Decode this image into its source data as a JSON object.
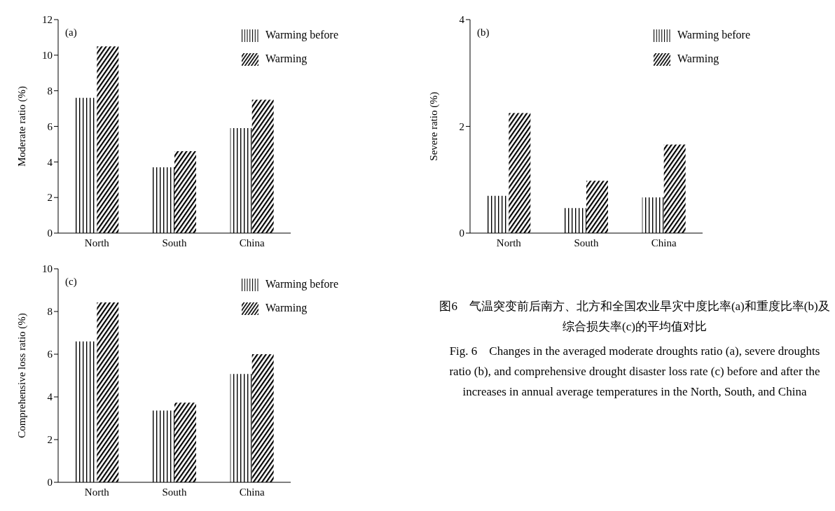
{
  "chart_data": [
    {
      "type": "bar",
      "annotations": [
        "(a)"
      ],
      "ylabel": "Moderate ratio (%)",
      "categories": [
        "North",
        "South",
        "China"
      ],
      "series": [
        {
          "name": "Warming before",
          "color": "#000000",
          "values": [
            7.6,
            3.7,
            5.9
          ]
        },
        {
          "name": "Warming",
          "color": "#000000",
          "values": [
            10.5,
            4.6,
            7.5
          ]
        }
      ],
      "ylim": [
        0,
        12
      ],
      "yticks": [
        0,
        2,
        4,
        6,
        8,
        10,
        12
      ],
      "legend": "top right"
    },
    {
      "type": "bar",
      "annotations": [
        "(b)"
      ],
      "ylabel": "Severe ratio (%)",
      "categories": [
        "North",
        "South",
        "China"
      ],
      "series": [
        {
          "name": "Warming before",
          "color": "#000000",
          "values": [
            0.7,
            0.47,
            0.67
          ]
        },
        {
          "name": "Warming",
          "color": "#000000",
          "values": [
            2.25,
            0.98,
            1.66
          ]
        }
      ],
      "ylim": [
        0,
        4
      ],
      "yticks": [
        0,
        2,
        4
      ],
      "legend": "top right"
    },
    {
      "type": "bar",
      "annotations": [
        "(c)"
      ],
      "ylabel": "Comprehensive loss ratio (%)",
      "categories": [
        "North",
        "South",
        "China"
      ],
      "series": [
        {
          "name": "Warming before",
          "color": "#000000",
          "values": [
            6.6,
            3.36,
            5.07
          ]
        },
        {
          "name": "Warming",
          "color": "#000000",
          "values": [
            8.43,
            3.73,
            6.0
          ]
        }
      ],
      "ylim": [
        0,
        10
      ],
      "yticks": [
        0,
        2,
        4,
        6,
        8,
        10
      ],
      "legend": "top right"
    },
    {
      "type": "other",
      "annotations": [
        "图6　气温突变前后南方、北方和全国农业旱灾中度比率(a)和重度比率(b)及综合损失率(c)的平均值对比",
        "Fig. 6　Changes in the averaged moderate droughts ratio (a), severe droughts ratio (b), and comprehensive drought disaster loss rate (c) before and after the increases in annual average temperatures in the North, South, and China"
      ]
    }
  ]
}
